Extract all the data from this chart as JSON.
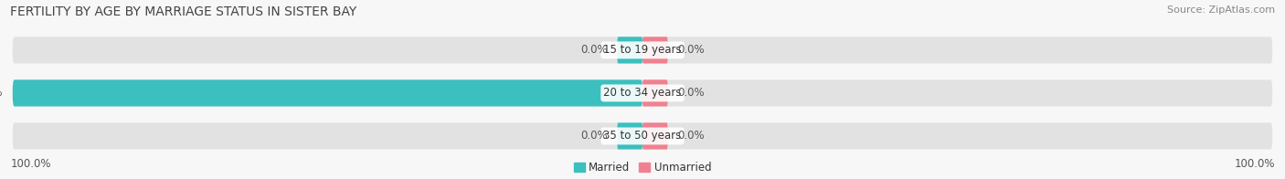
{
  "title": "FERTILITY BY AGE BY MARRIAGE STATUS IN SISTER BAY",
  "source": "Source: ZipAtlas.com",
  "categories": [
    "15 to 19 years",
    "20 to 34 years",
    "35 to 50 years"
  ],
  "married_values": [
    0.0,
    100.0,
    0.0
  ],
  "unmarried_values": [
    0.0,
    0.0,
    0.0
  ],
  "married_color": "#3bbfbf",
  "unmarried_color": "#f08090",
  "bar_bg_color": "#e2e2e2",
  "bar_height": 0.62,
  "legend_married": "Married",
  "legend_unmarried": "Unmarried",
  "left_label": "100.0%",
  "right_label": "100.0%",
  "title_fontsize": 10,
  "source_fontsize": 8,
  "label_fontsize": 8.5,
  "bg_color": "#f7f7f7"
}
